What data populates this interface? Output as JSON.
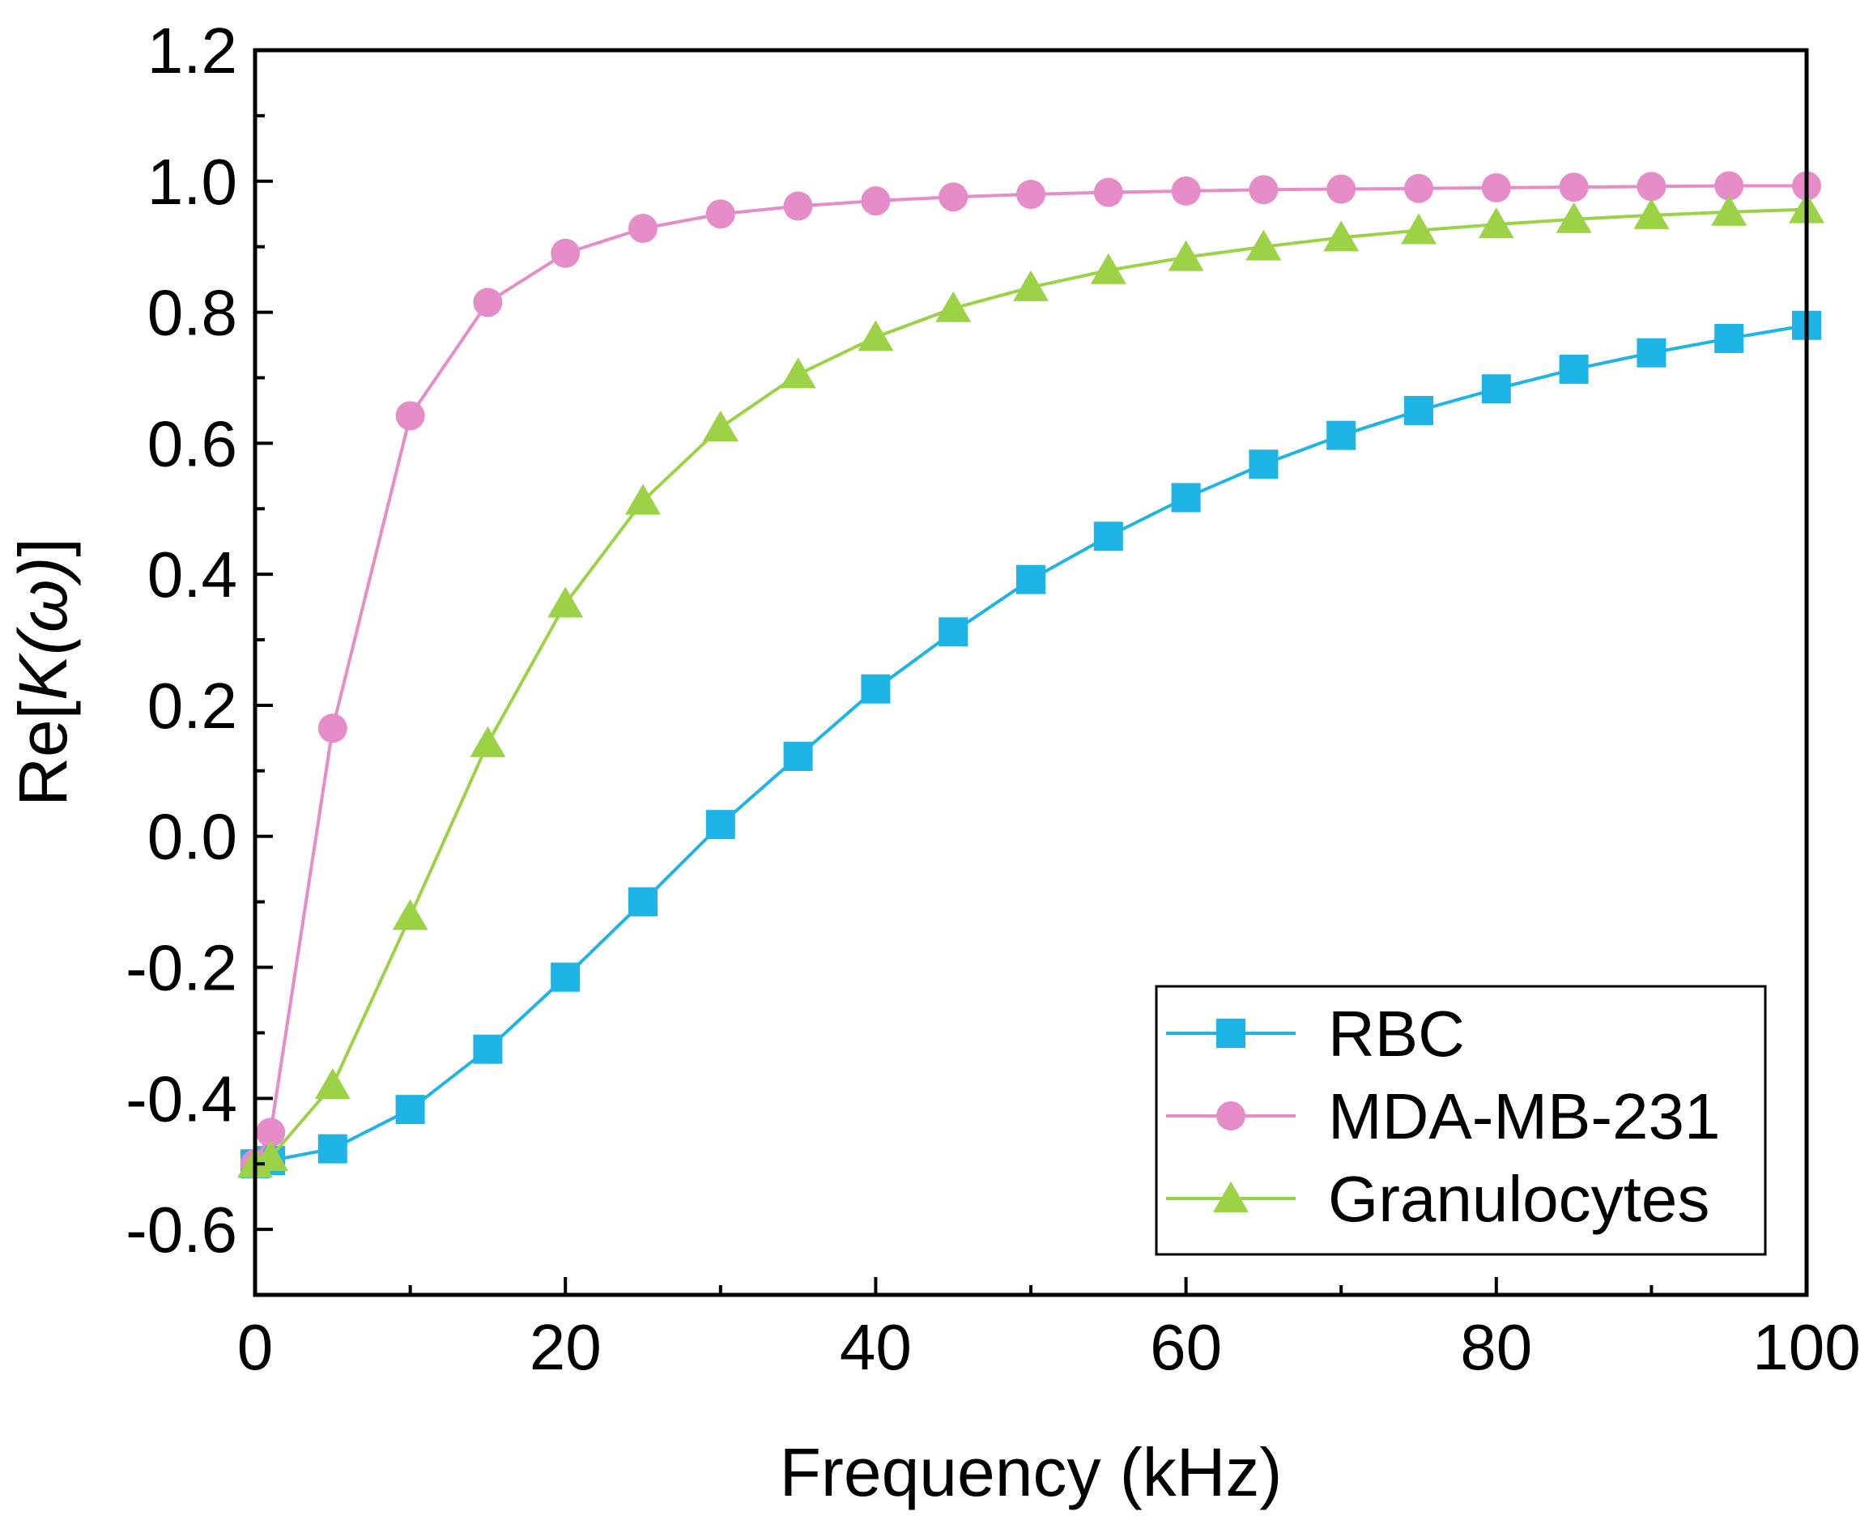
{
  "chart_data": {
    "type": "line",
    "title": "",
    "xlabel": "Frequency (kHz)",
    "ylabel_prefix": "Re[",
    "ylabel_symbol": "K(ω)",
    "ylabel_suffix": "]",
    "xlim": [
      0,
      100
    ],
    "ylim": [
      -0.7,
      1.2
    ],
    "xticks": [
      0,
      20,
      40,
      60,
      80,
      100
    ],
    "xtick_labels": [
      "0",
      "20",
      "40",
      "60",
      "80",
      "100"
    ],
    "yticks": [
      -0.6,
      -0.4,
      -0.2,
      0.0,
      0.2,
      0.4,
      0.6,
      0.8,
      1.0,
      1.2
    ],
    "ytick_labels": [
      "-0.6",
      "-0.4",
      "-0.2",
      "0.0",
      "0.2",
      "0.4",
      "0.6",
      "0.8",
      "1.0",
      "1.2"
    ],
    "grid": false,
    "legend_position": "bottom-right",
    "x": [
      0,
      1,
      5,
      10,
      15,
      20,
      25,
      30,
      35,
      40,
      45,
      50,
      55,
      60,
      65,
      70,
      75,
      80,
      85,
      90,
      95,
      100
    ],
    "series": [
      {
        "name": "RBC",
        "color": "#1eb4e6",
        "marker": "square",
        "values": [
          -0.5,
          -0.495,
          -0.477,
          -0.417,
          -0.325,
          -0.215,
          -0.1,
          0.018,
          0.122,
          0.225,
          0.312,
          0.392,
          0.458,
          0.517,
          0.568,
          0.612,
          0.65,
          0.683,
          0.713,
          0.738,
          0.76,
          0.78
        ]
      },
      {
        "name": "MDA-MB-231",
        "color": "#e68cc8",
        "marker": "circle",
        "values": [
          -0.5,
          -0.452,
          0.165,
          0.642,
          0.815,
          0.89,
          0.928,
          0.95,
          0.962,
          0.97,
          0.976,
          0.98,
          0.983,
          0.985,
          0.987,
          0.988,
          0.989,
          0.99,
          0.991,
          0.992,
          0.993,
          0.993
        ]
      },
      {
        "name": "Granulocytes",
        "color": "#9bd246",
        "marker": "triangle",
        "values": [
          -0.5,
          -0.49,
          -0.38,
          -0.122,
          0.142,
          0.355,
          0.512,
          0.624,
          0.705,
          0.762,
          0.806,
          0.838,
          0.864,
          0.884,
          0.9,
          0.914,
          0.925,
          0.934,
          0.942,
          0.948,
          0.953,
          0.957
        ]
      }
    ]
  }
}
